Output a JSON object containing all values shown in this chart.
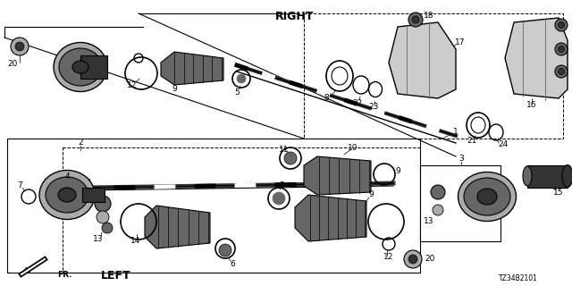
{
  "bg": "#ffffff",
  "line_color": "#000000",
  "part_number": "TZ34B2101",
  "right_label": "RIGHT",
  "left_label": "LEFT",
  "fr_label": "FR.",
  "fs_small": 6.5,
  "fs_title": 9,
  "gray_dark": "#333333",
  "gray_mid": "#666666",
  "gray_light": "#aaaaaa",
  "gray_lighter": "#cccccc"
}
